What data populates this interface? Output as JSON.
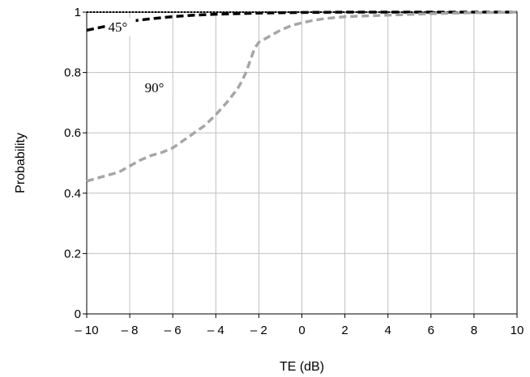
{
  "chart_data": {
    "type": "line",
    "xlabel": "TE (dB)",
    "ylabel": "Probability",
    "xlim": [
      -10,
      10
    ],
    "ylim": [
      0,
      1
    ],
    "x_ticks": [
      -10,
      -8,
      -6,
      -4,
      -2,
      0,
      2,
      4,
      6,
      8,
      10
    ],
    "x_tick_labels": [
      "– 10",
      "– 8",
      "– 6",
      "– 4",
      "– 2",
      "0",
      "2",
      "4",
      "6",
      "8",
      "10"
    ],
    "y_ticks": [
      0,
      0.2,
      0.4,
      0.6,
      0.8,
      1
    ],
    "y_tick_labels": [
      "0",
      "0.2",
      "0.4",
      "0.6",
      "0.8",
      "1"
    ],
    "grid": true,
    "series": [
      {
        "name": "",
        "color": "#000000",
        "style": "dotted",
        "x": [
          -10,
          -5,
          0,
          5,
          10
        ],
        "y": [
          1.0,
          1.0,
          1.0,
          1.0,
          1.0
        ]
      },
      {
        "name": "45°",
        "color": "#000000",
        "style": "dashed",
        "x": [
          -10,
          -9,
          -8,
          -7,
          -6,
          -5,
          -4,
          -3,
          -2,
          -1,
          0,
          2,
          4,
          6,
          8,
          10
        ],
        "y": [
          0.94,
          0.955,
          0.97,
          0.978,
          0.985,
          0.99,
          0.993,
          0.995,
          0.997,
          0.998,
          0.999,
          1.0,
          1.0,
          1.0,
          1.0,
          1.0
        ]
      },
      {
        "name": "90°",
        "color": "#a6a6a6",
        "style": "dashed",
        "x": [
          -10,
          -9,
          -8.5,
          -8,
          -7.5,
          -7,
          -6.5,
          -6,
          -5.5,
          -5,
          -4.5,
          -4,
          -3.5,
          -3,
          -2.8,
          -2.6,
          -2.4,
          -2.2,
          -2,
          -1.5,
          -1,
          -0.5,
          0,
          0.5,
          1,
          2,
          4,
          6,
          8,
          10
        ],
        "y": [
          0.44,
          0.46,
          0.47,
          0.49,
          0.51,
          0.525,
          0.535,
          0.55,
          0.575,
          0.6,
          0.625,
          0.66,
          0.7,
          0.745,
          0.77,
          0.8,
          0.84,
          0.88,
          0.9,
          0.92,
          0.94,
          0.955,
          0.965,
          0.972,
          0.978,
          0.985,
          0.99,
          0.995,
          0.998,
          1.0
        ]
      }
    ],
    "annotations": [
      {
        "text": "45°",
        "x": -9.0,
        "y": 0.935
      },
      {
        "text": "90°",
        "x": -7.3,
        "y": 0.735
      }
    ]
  }
}
